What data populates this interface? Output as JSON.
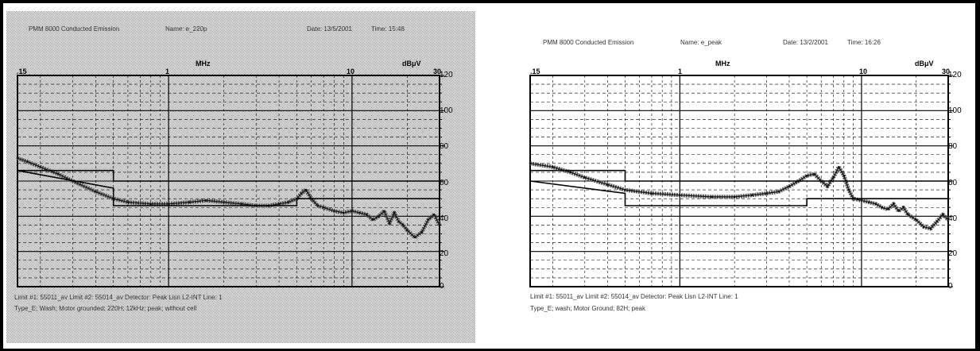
{
  "chart_data": [
    {
      "type": "line",
      "header": {
        "title": "PMM 8000 Conducted Emission",
        "name": "Name: e_220p",
        "date": "Date: 13/5/2001",
        "time": "Time: 15:48"
      },
      "x_unit": "MHz",
      "y_unit": "dBμV",
      "x_scale": "log",
      "xlim": [
        0.15,
        30
      ],
      "ylim": [
        0,
        120
      ],
      "x_ticks": [
        ".15",
        "1",
        "10",
        "30"
      ],
      "y_ticks": [
        "120",
        "100",
        "80",
        "60",
        "40",
        "20",
        "0"
      ],
      "grid": true,
      "background": "stippled",
      "footer": {
        "line1": "Limit #1: 55011_av    Limit #2: 55014_av    Detector: Peak    Lisn L2-INT  Line: 1",
        "line2": "Type_E; Wash; Motor grounded; 220H; 12kHz; peak; without cell"
      },
      "series": [
        {
          "x": [
            0.15,
            0.17,
            0.2,
            0.25,
            0.3,
            0.4,
            0.5,
            0.6,
            0.8,
            1.0,
            1.3,
            1.6,
            2.0,
            2.5,
            3.0,
            3.5,
            4.0,
            4.5,
            5.0,
            5.3,
            5.6,
            6.0,
            6.5,
            7.0,
            8.0,
            9.0,
            10,
            11,
            12,
            13,
            14,
            15,
            16,
            17,
            18,
            19,
            20,
            22,
            24,
            26,
            28,
            30
          ],
          "values": [
            73,
            71,
            68,
            64,
            60,
            54,
            50,
            48,
            47,
            47,
            48,
            49,
            48,
            47,
            46,
            46,
            47,
            48,
            50,
            53,
            55,
            50,
            46,
            45,
            43,
            42,
            43,
            42,
            41,
            38,
            40,
            43,
            36,
            42,
            37,
            35,
            32,
            28,
            31,
            38,
            41,
            35
          ]
        },
        {
          "x": [
            0.15,
            0.5,
            0.5,
            5.0,
            5.0,
            30
          ],
          "values": [
            66,
            56,
            46,
            46,
            50,
            50
          ]
        },
        {
          "x": [
            0.15,
            0.5,
            0.5,
            5.0,
            5.0,
            30
          ],
          "values": [
            66,
            66,
            60,
            60,
            60,
            60
          ]
        }
      ]
    },
    {
      "type": "line",
      "header": {
        "title": "PMM 8000 Conducted Emission",
        "name": "Name: e_peak",
        "date": "Date: 13/2/2001",
        "time": "Time: 16:26"
      },
      "x_unit": "MHz",
      "y_unit": "dBμV",
      "x_scale": "log",
      "xlim": [
        0.15,
        30
      ],
      "ylim": [
        0,
        120
      ],
      "x_ticks": [
        ".15",
        "1",
        "10",
        "30"
      ],
      "y_ticks": [
        "120",
        "100",
        "80",
        "60",
        "40",
        "20",
        "0"
      ],
      "grid": true,
      "background": "white",
      "footer": {
        "line1": "Limit #1: 55011_av    Limit #2: 55014_av    Detector: Peak    Lisn L2-INT  Line: 1",
        "line2": "Type_E; wash; Motor Ground; 82H; peak"
      },
      "series": [
        {
          "x": [
            0.15,
            0.2,
            0.25,
            0.3,
            0.4,
            0.5,
            0.7,
            1.0,
            1.5,
            2.0,
            2.5,
            3.0,
            3.5,
            4.0,
            4.5,
            5.0,
            5.5,
            6.0,
            6.5,
            7.0,
            7.5,
            8.0,
            8.5,
            9.0,
            10,
            11,
            12,
            13,
            14,
            15,
            16,
            17,
            18,
            20,
            22,
            24,
            26,
            28,
            30
          ],
          "values": [
            70,
            68,
            65,
            62,
            58,
            55,
            53,
            52,
            51,
            51,
            52,
            53,
            54,
            57,
            60,
            63,
            64,
            60,
            57,
            62,
            68,
            63,
            55,
            50,
            49,
            48,
            47,
            45,
            44,
            47,
            43,
            45,
            41,
            38,
            34,
            33,
            37,
            41,
            38
          ]
        },
        {
          "x": [
            0.15,
            0.5,
            0.5,
            5.0,
            5.0,
            30
          ],
          "values": [
            60,
            53,
            46,
            46,
            50,
            50
          ]
        },
        {
          "x": [
            0.15,
            0.5,
            0.5,
            5.0,
            5.0,
            30
          ],
          "values": [
            66,
            66,
            60,
            60,
            60,
            60
          ]
        }
      ]
    }
  ]
}
